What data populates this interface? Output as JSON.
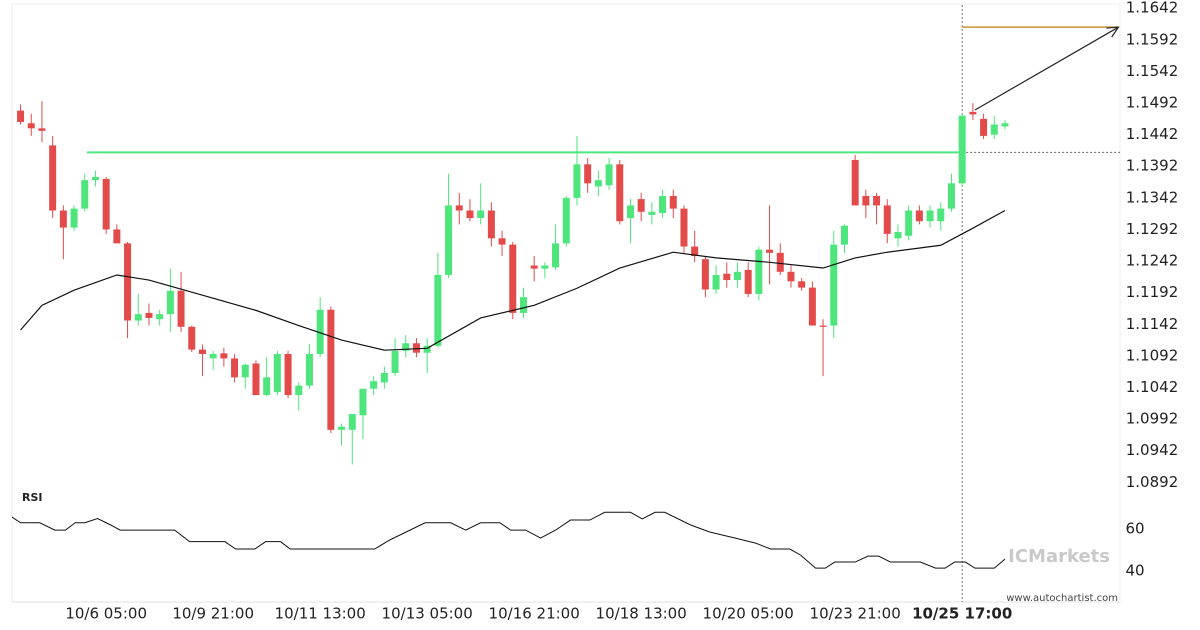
{
  "chart_data": {
    "type": "candlestick",
    "up_color": "#4de57c",
    "down_color": "#e34b4b",
    "x": [
      0,
      1,
      2,
      3,
      4,
      5,
      6,
      7,
      8,
      9,
      10,
      11,
      12,
      13,
      14,
      15,
      16,
      17,
      18,
      19,
      20,
      21,
      22,
      23,
      24,
      25,
      26,
      27,
      28,
      29,
      30,
      31,
      32,
      33,
      34,
      35,
      36,
      37,
      38,
      39,
      40,
      41,
      42,
      43,
      44,
      45,
      46,
      47,
      48,
      49,
      50,
      51,
      52,
      53,
      54,
      55,
      56,
      57,
      58,
      59,
      60,
      61,
      62,
      63,
      64,
      65,
      66,
      67,
      68,
      69,
      70,
      71,
      72,
      73,
      74,
      75,
      76,
      77,
      78,
      79,
      80,
      81,
      82,
      83,
      84,
      85,
      86,
      87,
      88,
      89,
      90,
      91,
      92
    ],
    "open": [
      1.148,
      1.146,
      1.1452,
      1.1425,
      1.1322,
      1.1295,
      1.1325,
      1.137,
      1.1372,
      1.1292,
      1.127,
      1.1148,
      1.116,
      1.115,
      1.1158,
      1.1195,
      1.1138,
      1.1102,
      1.1088,
      1.1096,
      1.1088,
      1.1058,
      1.108,
      1.103,
      1.1035,
      1.1095,
      1.103,
      1.1045,
      1.1095,
      1.1165,
      1.0975,
      1.0975,
      1.0998,
      1.104,
      1.105,
      1.1065,
      1.11,
      1.1112,
      1.1097,
      1.1108,
      1.122,
      1.133,
      1.1322,
      1.131,
      1.1322,
      1.1278,
      1.1268,
      1.116,
      1.1235,
      1.123,
      1.1232,
      1.127,
      1.1342,
      1.1395,
      1.136,
      1.1362,
      1.1395,
      1.131,
      1.134,
      1.1315,
      1.1318,
      1.1345,
      1.1325,
      1.1265,
      1.1245,
      1.1197,
      1.1222,
      1.1212,
      1.1228,
      1.119,
      1.126,
      1.1255,
      1.1225,
      1.121,
      1.12,
      1.114,
      1.114,
      1.1268,
      1.1402,
      1.1345,
      1.1345,
      1.133,
      1.1278,
      1.1282,
      1.1322,
      1.1305,
      1.1305,
      1.1325,
      1.1365,
      1.1478,
      1.1467,
      1.1442,
      1.1455
    ],
    "high": [
      1.149,
      1.1475,
      1.1495,
      1.144,
      1.133,
      1.133,
      1.138,
      1.1385,
      1.1375,
      1.13,
      1.1272,
      1.119,
      1.1175,
      1.1165,
      1.123,
      1.1225,
      1.114,
      1.111,
      1.11,
      1.1105,
      1.1095,
      1.108,
      1.1085,
      1.109,
      1.11,
      1.11,
      1.105,
      1.111,
      1.1185,
      1.117,
      1.0985,
      1.1,
      1.104,
      1.106,
      1.1075,
      1.112,
      1.1125,
      1.112,
      1.112,
      1.1255,
      1.138,
      1.135,
      1.134,
      1.1365,
      1.1335,
      1.129,
      1.1272,
      1.12,
      1.125,
      1.124,
      1.13,
      1.1345,
      1.144,
      1.1405,
      1.1385,
      1.1405,
      1.1402,
      1.134,
      1.135,
      1.1335,
      1.1355,
      1.1355,
      1.133,
      1.129,
      1.125,
      1.1235,
      1.124,
      1.124,
      1.124,
      1.1265,
      1.133,
      1.127,
      1.1235,
      1.1215,
      1.121,
      1.115,
      1.129,
      1.13,
      1.141,
      1.1355,
      1.135,
      1.134,
      1.13,
      1.133,
      1.133,
      1.133,
      1.1335,
      1.138,
      1.1475,
      1.1492,
      1.1475,
      1.1472,
      1.1465
    ],
    "low": [
      1.1458,
      1.144,
      1.143,
      1.131,
      1.1245,
      1.129,
      1.132,
      1.136,
      1.1285,
      1.127,
      1.112,
      1.114,
      1.114,
      1.114,
      1.113,
      1.113,
      1.1098,
      1.106,
      1.107,
      1.1075,
      1.105,
      1.104,
      1.103,
      1.1028,
      1.103,
      1.1025,
      1.1005,
      1.104,
      1.109,
      1.097,
      1.095,
      1.092,
      1.096,
      1.103,
      1.104,
      1.106,
      1.109,
      1.109,
      1.1065,
      1.1105,
      1.1215,
      1.13,
      1.1305,
      1.13,
      1.1265,
      1.125,
      1.115,
      1.1152,
      1.121,
      1.1215,
      1.1228,
      1.1265,
      1.133,
      1.135,
      1.1345,
      1.1355,
      1.13,
      1.127,
      1.1305,
      1.13,
      1.131,
      1.131,
      1.1255,
      1.124,
      1.1185,
      1.119,
      1.12,
      1.12,
      1.1185,
      1.118,
      1.1205,
      1.122,
      1.12,
      1.1195,
      1.114,
      1.106,
      1.112,
      1.1255,
      1.133,
      1.131,
      1.13,
      1.127,
      1.1265,
      1.1275,
      1.13,
      1.1295,
      1.129,
      1.132,
      1.136,
      1.1465,
      1.1435,
      1.1435,
      1.145
    ],
    "close": [
      1.1462,
      1.1452,
      1.1448,
      1.1322,
      1.1295,
      1.1325,
      1.137,
      1.1375,
      1.1292,
      1.127,
      1.1148,
      1.1158,
      1.1152,
      1.1158,
      1.1195,
      1.1138,
      1.1102,
      1.1095,
      1.1095,
      1.1088,
      1.1058,
      1.1078,
      1.103,
      1.1058,
      1.1095,
      1.103,
      1.1045,
      1.1095,
      1.1165,
      1.0975,
      1.098,
      1.1,
      1.104,
      1.1052,
      1.1065,
      1.11,
      1.1112,
      1.1097,
      1.1108,
      1.122,
      1.133,
      1.1322,
      1.131,
      1.1322,
      1.1278,
      1.1268,
      1.116,
      1.1185,
      1.123,
      1.1235,
      1.127,
      1.1342,
      1.1395,
      1.1365,
      1.137,
      1.1395,
      1.1305,
      1.133,
      1.132,
      1.132,
      1.1345,
      1.1325,
      1.1265,
      1.125,
      1.1197,
      1.122,
      1.1212,
      1.1225,
      1.119,
      1.126,
      1.1255,
      1.1225,
      1.121,
      1.12,
      1.114,
      1.1138,
      1.1268,
      1.1298,
      1.133,
      1.133,
      1.133,
      1.1285,
      1.1288,
      1.1322,
      1.1305,
      1.1322,
      1.1325,
      1.1365,
      1.1472,
      1.1474,
      1.144,
      1.1458,
      1.146
    ],
    "xlim": [
      -0.8,
      102.75
    ],
    "xticks": [
      {
        "value": 8,
        "label": "10/6 05:00"
      },
      {
        "value": 18,
        "label": "10/9 21:00"
      },
      {
        "value": 28,
        "label": "10/11 13:00"
      },
      {
        "value": 38,
        "label": "10/13 05:00"
      },
      {
        "value": 48,
        "label": "10/16 21:00"
      },
      {
        "value": 58,
        "label": "10/18 13:00"
      },
      {
        "value": 68,
        "label": "10/20 05:00"
      },
      {
        "value": 78,
        "label": "10/23 21:00"
      },
      {
        "value": 88,
        "label": "10/25 17:00"
      }
    ],
    "ylim": [
      1.0883,
      1.1655
    ],
    "yticks": [
      1.0892,
      1.0942,
      1.0992,
      1.1042,
      1.1092,
      1.1142,
      1.1192,
      1.1242,
      1.1292,
      1.1342,
      1.1392,
      1.1442,
      1.1492,
      1.1542,
      1.1592,
      1.1642
    ],
    "moving_average": {
      "color": "#111111",
      "x": [
        0,
        2,
        5,
        9,
        12,
        17,
        22,
        26,
        30,
        34,
        38,
        43,
        48,
        52,
        56,
        61,
        65,
        70,
        75,
        78,
        81,
        86,
        89,
        92
      ],
      "values": [
        1.1133,
        1.1172,
        1.1196,
        1.122,
        1.1212,
        1.1188,
        1.1164,
        1.114,
        1.1117,
        1.1101,
        1.1104,
        1.1152,
        1.1172,
        1.1199,
        1.1231,
        1.1256,
        1.1247,
        1.124,
        1.1231,
        1.1247,
        1.1256,
        1.1267,
        1.1294,
        1.1322
      ]
    },
    "resistance": {
      "value": 1.1414,
      "x": [
        6.2,
        88
      ],
      "color": "#4de57c",
      "projection_color": "#666666"
    },
    "target": {
      "value": 1.1612,
      "x": [
        88,
        102.6
      ],
      "color": "#c8923a"
    },
    "forecast_arrow": {
      "x": [
        89.2,
        102.6
      ],
      "y": [
        1.1481,
        1.1612
      ],
      "color": "#222222"
    },
    "pattern_end_x": 88,
    "rsi": {
      "label": "RSI",
      "color": "#111111",
      "x": [
        -0.8,
        0,
        1.8,
        3.2,
        4.2,
        5.1,
        6,
        7.2,
        8.4,
        9.3,
        14.4,
        15.8,
        19.1,
        20.1,
        21.9,
        22.9,
        24.3,
        25.2,
        33.1,
        34.5,
        36.4,
        37.8,
        40.2,
        41.6,
        43,
        44.8,
        45.8,
        47.2,
        48.6,
        50,
        51.4,
        53.2,
        54.6,
        57,
        58.1,
        59.3,
        60.2,
        62.6,
        64.4,
        66.8,
        68.7,
        70.1,
        71.9,
        72.9,
        74.3,
        75.2,
        76.1,
        78,
        79.2,
        80.2,
        81.3,
        84.1,
        85.5,
        86.4,
        87.3,
        88.3,
        89.2,
        91,
        92
      ],
      "values": [
        65.7,
        63,
        63,
        59.5,
        59.5,
        63,
        63,
        65,
        62,
        59.5,
        59.5,
        54,
        54,
        50.5,
        50.5,
        54,
        54,
        50.5,
        50.5,
        54.8,
        59.5,
        63,
        63,
        59.5,
        63,
        63,
        59.5,
        59.5,
        55.7,
        59.5,
        64.3,
        64.3,
        68,
        68,
        64.8,
        68,
        68,
        62,
        58.6,
        55.7,
        53.3,
        50.5,
        50.5,
        47.6,
        41.4,
        41.4,
        44.3,
        44.3,
        47.1,
        47.1,
        44.3,
        44.3,
        41.4,
        41.4,
        44.3,
        44.3,
        41.4,
        41.4,
        45.7
      ],
      "ylim": [
        24.8,
        78.6
      ],
      "yticks": [
        40,
        60
      ]
    },
    "watermark": {
      "logo": "ICMarkets",
      "url": "www.autochartist.com"
    }
  }
}
